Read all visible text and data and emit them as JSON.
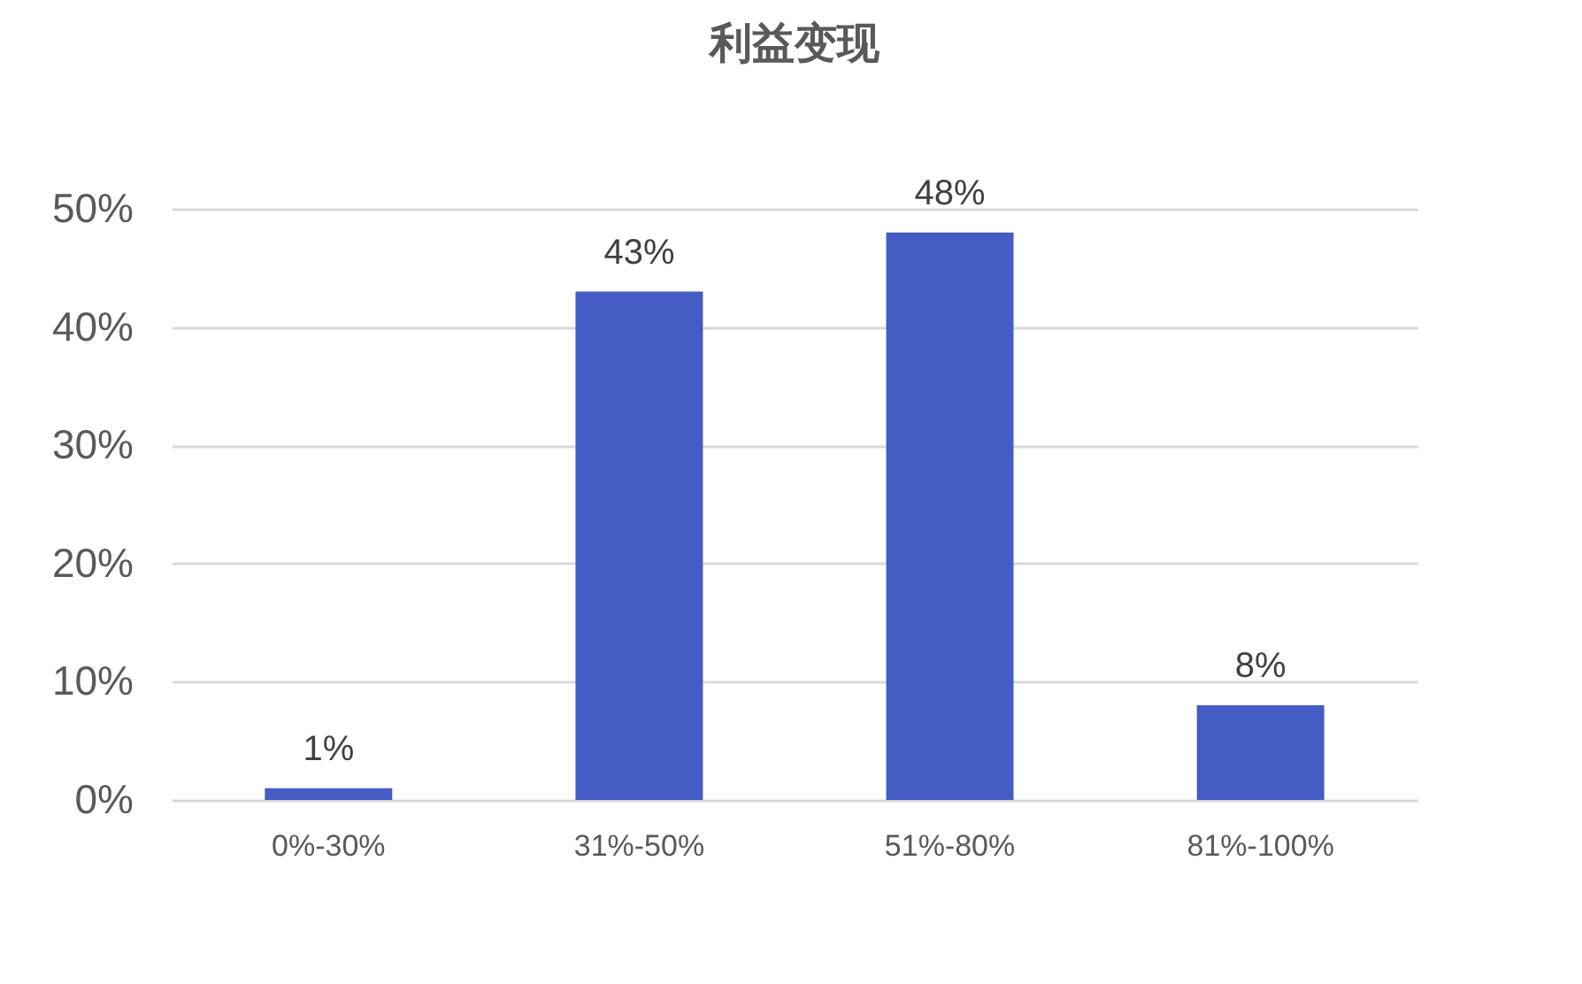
{
  "chart_data": {
    "type": "bar",
    "title": "利益变现",
    "categories": [
      "0%-30%",
      "31%-50%",
      "51%-80%",
      "81%-100%"
    ],
    "values": [
      1,
      43,
      48,
      8
    ],
    "color": "#445cc4",
    "value_labels": [
      "1%",
      "43%",
      "48%",
      "8%"
    ],
    "ylim": [
      0,
      50
    ],
    "yticks": [
      {
        "value": 0,
        "label": "0%"
      },
      {
        "value": 10,
        "label": "10%"
      },
      {
        "value": 20,
        "label": "20%"
      },
      {
        "value": 30,
        "label": "30%"
      },
      {
        "value": 40,
        "label": "40%"
      },
      {
        "value": 50,
        "label": "50%"
      }
    ],
    "grid": "y"
  }
}
